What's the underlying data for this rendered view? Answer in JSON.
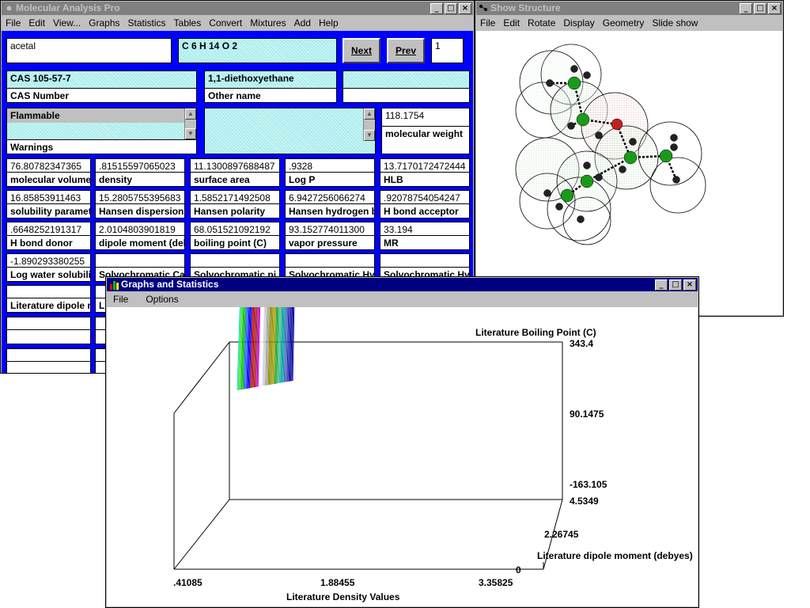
{
  "mol_window": {
    "title": "Molecular Analysis Pro",
    "menu": [
      "File",
      "Edit",
      "View...",
      "Graphs",
      "Statistics",
      "Tables",
      "Convert",
      "Mixtures",
      "Add",
      "Help"
    ],
    "name_value": "acetal",
    "formula_value": "C 6 H 14 O 2",
    "next_label": "Next",
    "prev_label": "Prev",
    "record_number": "1",
    "cas_value": "CAS 105-57-7",
    "cas_label": "CAS Number",
    "other_name_value": "1,1-diethoxyethane",
    "other_name_label": "Other name",
    "warnings_value": "Flammable",
    "warnings_label": "Warnings",
    "mw_value": "118.1754",
    "mw_label": "molecular weight",
    "props": [
      [
        {
          "v": "76.80782347365",
          "l": "molecular volume"
        },
        {
          "v": ".81515597065023",
          "l": "density"
        },
        {
          "v": "11.1300897688487",
          "l": "surface area"
        },
        {
          "v": ".9328",
          "l": "Log P"
        },
        {
          "v": "13.7170172472444",
          "l": "HLB"
        }
      ],
      [
        {
          "v": "16.85853911463",
          "l": "solubility paramete"
        },
        {
          "v": "15.2805755395683",
          "l": "Hansen dispersion"
        },
        {
          "v": "1.5852171492508",
          "l": "Hansen polarity"
        },
        {
          "v": "6.9427256066274",
          "l": "Hansen hydrogen b"
        },
        {
          "v": ".92078754054247",
          "l": "H bond acceptor"
        }
      ],
      [
        {
          "v": ".6648252191317",
          "l": "H bond donor"
        },
        {
          "v": "2.0104803901819",
          "l": "dipole moment (deb"
        },
        {
          "v": "68.051521092192",
          "l": "boiling point (C)"
        },
        {
          "v": "93.152774011300",
          "l": "vapor pressure"
        },
        {
          "v": "33.194",
          "l": "MR"
        }
      ],
      [
        {
          "v": "-1.890293380255",
          "l": "Log water solubili"
        },
        {
          "v": "",
          "l": "Solvochromatic Ca"
        },
        {
          "v": "",
          "l": "Solvochromatic pi s"
        },
        {
          "v": "",
          "l": "Solvochromatic Hy"
        },
        {
          "v": "",
          "l": "Solvochromatic Hy"
        }
      ]
    ],
    "lit_dipole_label": "Literature dipole m",
    "lit_trunc_label": "Li"
  },
  "structure_window": {
    "title": "Show Structure",
    "menu": [
      "File",
      "Edit",
      "Rotate",
      "Display",
      "Geometry",
      "Slide show"
    ]
  },
  "graph_window": {
    "title": "Graphs and Statistics",
    "menu": [
      "File",
      "Options"
    ]
  },
  "chart_data": {
    "type": "surface",
    "z_label": "Literature Boiling Point (C)",
    "z_ticks": [
      "343.4",
      "90.1475",
      "-163.105"
    ],
    "y_label": "Literature dipole moment (debyes)",
    "y_ticks": [
      "4.5349",
      "2.26745",
      "0"
    ],
    "x_label": "Literature Density Values",
    "x_ticks": [
      ".41085",
      "1.88455",
      "3.35825"
    ],
    "x_range": [
      0.41085,
      3.35825
    ],
    "y_range": [
      0,
      4.5349
    ],
    "z_range": [
      -163.105,
      343.4
    ],
    "series_colors": [
      "#0000a0",
      "#2020b0",
      "#4060c0",
      "#00a0a0",
      "#40c080",
      "#20a040",
      "#a0a000",
      "#909000",
      "#a0a0a0",
      "#d0d0d0",
      "#ffffff",
      "#c000c0",
      "#a02020",
      "#c00000",
      "#0000ff",
      "#2060ff",
      "#00c000",
      "#40e040",
      "#00e0e0"
    ],
    "curve_count": 60
  }
}
